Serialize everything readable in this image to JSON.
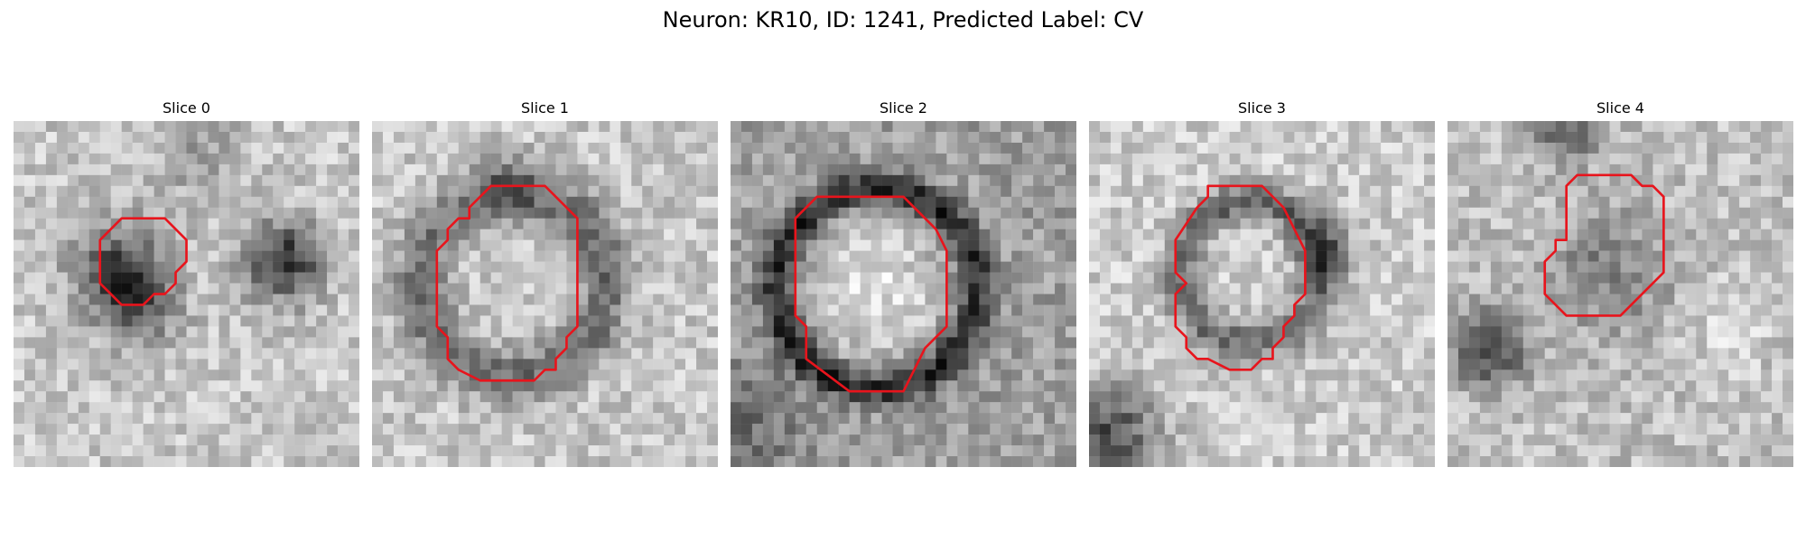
{
  "figure": {
    "title": "Neuron: KR10, ID: 1241, Predicted Label: CV",
    "contour_color": "#e8141c"
  },
  "panels": [
    {
      "title": "Slice 0",
      "pattern": "dark-blobs",
      "contour": [
        [
          12,
          9
        ],
        [
          14,
          9
        ],
        [
          16,
          11
        ],
        [
          16,
          13
        ],
        [
          15,
          14
        ],
        [
          15,
          15
        ],
        [
          14,
          16
        ],
        [
          13,
          16
        ],
        [
          12,
          17
        ],
        [
          10,
          17
        ],
        [
          8,
          15
        ],
        [
          8,
          11
        ],
        [
          10,
          9
        ]
      ]
    },
    {
      "title": "Slice 1",
      "pattern": "dark-ring",
      "contour": [
        [
          11,
          6
        ],
        [
          16,
          6
        ],
        [
          19,
          9
        ],
        [
          19,
          19
        ],
        [
          18,
          20
        ],
        [
          18,
          21
        ],
        [
          17,
          22
        ],
        [
          17,
          23
        ],
        [
          16,
          23
        ],
        [
          15,
          24
        ],
        [
          10,
          24
        ],
        [
          8,
          23
        ],
        [
          7,
          22
        ],
        [
          7,
          20
        ],
        [
          6,
          19
        ],
        [
          6,
          12
        ],
        [
          7,
          11
        ],
        [
          7,
          10
        ],
        [
          8,
          9
        ],
        [
          9,
          9
        ],
        [
          9,
          8
        ],
        [
          10,
          7
        ]
      ]
    },
    {
      "title": "Slice 2",
      "pattern": "bright-core",
      "contour": [
        [
          8,
          7
        ],
        [
          16,
          7
        ],
        [
          19,
          10
        ],
        [
          20,
          12
        ],
        [
          20,
          19
        ],
        [
          18,
          21
        ],
        [
          16,
          25
        ],
        [
          11,
          25
        ],
        [
          7,
          22
        ],
        [
          7,
          19
        ],
        [
          6,
          18
        ],
        [
          6,
          9
        ]
      ]
    },
    {
      "title": "Slice 3",
      "pattern": "dark-ring-offset",
      "contour": [
        [
          11,
          6
        ],
        [
          16,
          6
        ],
        [
          18,
          8
        ],
        [
          19,
          10
        ],
        [
          20,
          12
        ],
        [
          20,
          16
        ],
        [
          19,
          17
        ],
        [
          19,
          18
        ],
        [
          18,
          19
        ],
        [
          18,
          20
        ],
        [
          17,
          21
        ],
        [
          17,
          22
        ],
        [
          16,
          22
        ],
        [
          15,
          23
        ],
        [
          13,
          23
        ],
        [
          11,
          22
        ],
        [
          10,
          22
        ],
        [
          9,
          21
        ],
        [
          9,
          20
        ],
        [
          8,
          19
        ],
        [
          8,
          16
        ],
        [
          9,
          15
        ],
        [
          8,
          14
        ],
        [
          8,
          11
        ],
        [
          10,
          8
        ],
        [
          11,
          7
        ]
      ]
    },
    {
      "title": "Slice 4",
      "pattern": "speckle",
      "contour": [
        [
          12,
          5
        ],
        [
          17,
          5
        ],
        [
          18,
          6
        ],
        [
          19,
          6
        ],
        [
          20,
          7
        ],
        [
          20,
          14
        ],
        [
          16,
          18
        ],
        [
          11,
          18
        ],
        [
          9,
          16
        ],
        [
          9,
          13
        ],
        [
          10,
          12
        ],
        [
          10,
          11
        ],
        [
          11,
          11
        ],
        [
          11,
          10
        ],
        [
          11,
          6
        ]
      ]
    }
  ]
}
